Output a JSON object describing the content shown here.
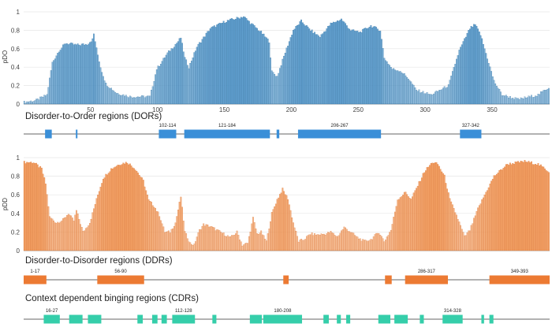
{
  "colors": {
    "dor": "#3a8fd8",
    "dor_bar_fill": "#5b9ccd",
    "dor_bar_stroke": "#2e6f9f",
    "ddr": "#ec7a33",
    "ddr_bar_fill": "#f29d5f",
    "ddr_bar_stroke": "#d9702f",
    "cdr": "#35ceaa",
    "track": "#666666",
    "grid": "#e6e6e6"
  },
  "sections": {
    "dor_title": "Disorder-to-Order regions (DORs)",
    "ddr_title": "Disorder-to-Disorder regions (DDRs)",
    "cdr_title": "Context dependent binging regions (CDRs)"
  },
  "chart_data": [
    {
      "type": "bar",
      "series_id": "dor",
      "ylabel": "pDO",
      "ylim": [
        0,
        1
      ],
      "xlim": [
        0,
        393
      ],
      "x_ticks": [
        50,
        100,
        150,
        200,
        250,
        300,
        350
      ],
      "y_ticks": [
        0,
        0.2,
        0.4,
        0.6,
        0.8,
        1
      ],
      "y_tick_labels": [
        "0",
        "0.2",
        "0.4",
        "0.6",
        "0.8",
        "1"
      ],
      "profile_keypoints": [
        [
          1,
          0.02
        ],
        [
          10,
          0.04
        ],
        [
          18,
          0.1
        ],
        [
          22,
          0.45
        ],
        [
          27,
          0.58
        ],
        [
          32,
          0.66
        ],
        [
          40,
          0.64
        ],
        [
          48,
          0.65
        ],
        [
          52,
          0.7
        ],
        [
          53,
          0.76
        ],
        [
          55,
          0.6
        ],
        [
          58,
          0.4
        ],
        [
          62,
          0.22
        ],
        [
          70,
          0.12
        ],
        [
          80,
          0.08
        ],
        [
          95,
          0.08
        ],
        [
          100,
          0.38
        ],
        [
          108,
          0.55
        ],
        [
          116,
          0.68
        ],
        [
          118,
          0.72
        ],
        [
          121,
          0.5
        ],
        [
          124,
          0.4
        ],
        [
          130,
          0.62
        ],
        [
          140,
          0.82
        ],
        [
          152,
          0.9
        ],
        [
          160,
          0.93
        ],
        [
          165,
          0.95
        ],
        [
          170,
          0.88
        ],
        [
          178,
          0.78
        ],
        [
          184,
          0.68
        ],
        [
          186,
          0.35
        ],
        [
          190,
          0.3
        ],
        [
          196,
          0.56
        ],
        [
          202,
          0.8
        ],
        [
          208,
          0.9
        ],
        [
          215,
          0.8
        ],
        [
          222,
          0.73
        ],
        [
          230,
          0.87
        ],
        [
          238,
          0.92
        ],
        [
          245,
          0.8
        ],
        [
          252,
          0.78
        ],
        [
          260,
          0.85
        ],
        [
          267,
          0.8
        ],
        [
          270,
          0.5
        ],
        [
          276,
          0.38
        ],
        [
          282,
          0.36
        ],
        [
          288,
          0.28
        ],
        [
          294,
          0.15
        ],
        [
          305,
          0.1
        ],
        [
          318,
          0.2
        ],
        [
          326,
          0.58
        ],
        [
          334,
          0.82
        ],
        [
          338,
          0.86
        ],
        [
          342,
          0.75
        ],
        [
          347,
          0.5
        ],
        [
          352,
          0.25
        ],
        [
          358,
          0.1
        ],
        [
          370,
          0.05
        ],
        [
          385,
          0.1
        ],
        [
          393,
          0.18
        ]
      ]
    },
    {
      "type": "bar",
      "series_id": "ddr",
      "ylabel": "pDD",
      "ylim": [
        0,
        1
      ],
      "xlim": [
        0,
        393
      ],
      "y_ticks": [
        0,
        0.2,
        0.4,
        0.6,
        0.8,
        1
      ],
      "y_tick_labels": [
        "0",
        "0.2",
        "0.4",
        "0.6",
        "0.8",
        "1"
      ],
      "profile_keypoints": [
        [
          1,
          0.95
        ],
        [
          8,
          0.95
        ],
        [
          14,
          0.88
        ],
        [
          17,
          0.72
        ],
        [
          20,
          0.36
        ],
        [
          25,
          0.3
        ],
        [
          30,
          0.33
        ],
        [
          34,
          0.4
        ],
        [
          38,
          0.32
        ],
        [
          40,
          0.43
        ],
        [
          45,
          0.2
        ],
        [
          50,
          0.3
        ],
        [
          56,
          0.6
        ],
        [
          60,
          0.78
        ],
        [
          66,
          0.88
        ],
        [
          72,
          0.93
        ],
        [
          78,
          0.95
        ],
        [
          84,
          0.88
        ],
        [
          90,
          0.75
        ],
        [
          94,
          0.54
        ],
        [
          98,
          0.48
        ],
        [
          102,
          0.38
        ],
        [
          106,
          0.2
        ],
        [
          110,
          0.2
        ],
        [
          114,
          0.3
        ],
        [
          118,
          0.58
        ],
        [
          121,
          0.2
        ],
        [
          125,
          0.08
        ],
        [
          128,
          0.06
        ],
        [
          130,
          0.15
        ],
        [
          132,
          0.22
        ],
        [
          135,
          0.28
        ],
        [
          140,
          0.26
        ],
        [
          145,
          0.22
        ],
        [
          150,
          0.18
        ],
        [
          155,
          0.14
        ],
        [
          160,
          0.2
        ],
        [
          164,
          0.06
        ],
        [
          168,
          0.08
        ],
        [
          172,
          0.35
        ],
        [
          175,
          0.18
        ],
        [
          178,
          0.2
        ],
        [
          182,
          0.1
        ],
        [
          186,
          0.4
        ],
        [
          190,
          0.55
        ],
        [
          194,
          0.66
        ],
        [
          198,
          0.56
        ],
        [
          202,
          0.3
        ],
        [
          206,
          0.1
        ],
        [
          210,
          0.12
        ],
        [
          215,
          0.18
        ],
        [
          220,
          0.17
        ],
        [
          226,
          0.18
        ],
        [
          230,
          0.2
        ],
        [
          235,
          0.15
        ],
        [
          240,
          0.25
        ],
        [
          245,
          0.2
        ],
        [
          250,
          0.14
        ],
        [
          255,
          0.1
        ],
        [
          260,
          0.12
        ],
        [
          266,
          0.2
        ],
        [
          270,
          0.1
        ],
        [
          275,
          0.22
        ],
        [
          280,
          0.55
        ],
        [
          286,
          0.63
        ],
        [
          290,
          0.55
        ],
        [
          295,
          0.7
        ],
        [
          300,
          0.85
        ],
        [
          306,
          0.95
        ],
        [
          310,
          0.93
        ],
        [
          315,
          0.8
        ],
        [
          319,
          0.55
        ],
        [
          324,
          0.38
        ],
        [
          330,
          0.15
        ],
        [
          334,
          0.22
        ],
        [
          340,
          0.45
        ],
        [
          345,
          0.6
        ],
        [
          352,
          0.8
        ],
        [
          362,
          0.93
        ],
        [
          375,
          0.96
        ],
        [
          385,
          0.93
        ],
        [
          393,
          0.85
        ]
      ]
    }
  ],
  "regions": {
    "dor": [
      {
        "start": 17,
        "end": 21,
        "label": ""
      },
      {
        "start": 40,
        "end": 40,
        "label": ""
      },
      {
        "start": 102,
        "end": 114,
        "label": "102-114"
      },
      {
        "start": 121,
        "end": 184,
        "label": "121-184"
      },
      {
        "start": 190,
        "end": 191,
        "label": ""
      },
      {
        "start": 206,
        "end": 267,
        "label": "206-267"
      },
      {
        "start": 327,
        "end": 342,
        "label": "327-342"
      }
    ],
    "ddr": [
      {
        "start": 1,
        "end": 17,
        "label": "1-17"
      },
      {
        "start": 56,
        "end": 90,
        "label": "56-90"
      },
      {
        "start": 195,
        "end": 198,
        "label": ""
      },
      {
        "start": 271,
        "end": 275,
        "label": ""
      },
      {
        "start": 286,
        "end": 317,
        "label": "286-317"
      },
      {
        "start": 349,
        "end": 393,
        "label": "349-393"
      }
    ],
    "cdr": [
      {
        "start": 16,
        "end": 27,
        "label": "16-27"
      },
      {
        "start": 35,
        "end": 44,
        "label": ""
      },
      {
        "start": 49,
        "end": 58,
        "label": ""
      },
      {
        "start": 86,
        "end": 89,
        "label": ""
      },
      {
        "start": 97,
        "end": 100,
        "label": ""
      },
      {
        "start": 104,
        "end": 107,
        "label": ""
      },
      {
        "start": 112,
        "end": 128,
        "label": "112-128"
      },
      {
        "start": 142,
        "end": 144,
        "label": ""
      },
      {
        "start": 170,
        "end": 178,
        "label": ""
      },
      {
        "start": 180,
        "end": 208,
        "label": "180-208"
      },
      {
        "start": 225,
        "end": 228,
        "label": ""
      },
      {
        "start": 235,
        "end": 237,
        "label": ""
      },
      {
        "start": 242,
        "end": 244,
        "label": ""
      },
      {
        "start": 266,
        "end": 274,
        "label": ""
      },
      {
        "start": 278,
        "end": 287,
        "label": ""
      },
      {
        "start": 297,
        "end": 299,
        "label": ""
      },
      {
        "start": 314,
        "end": 328,
        "label": "314-328"
      },
      {
        "start": 343,
        "end": 344,
        "label": ""
      },
      {
        "start": 349,
        "end": 351,
        "label": ""
      }
    ]
  }
}
